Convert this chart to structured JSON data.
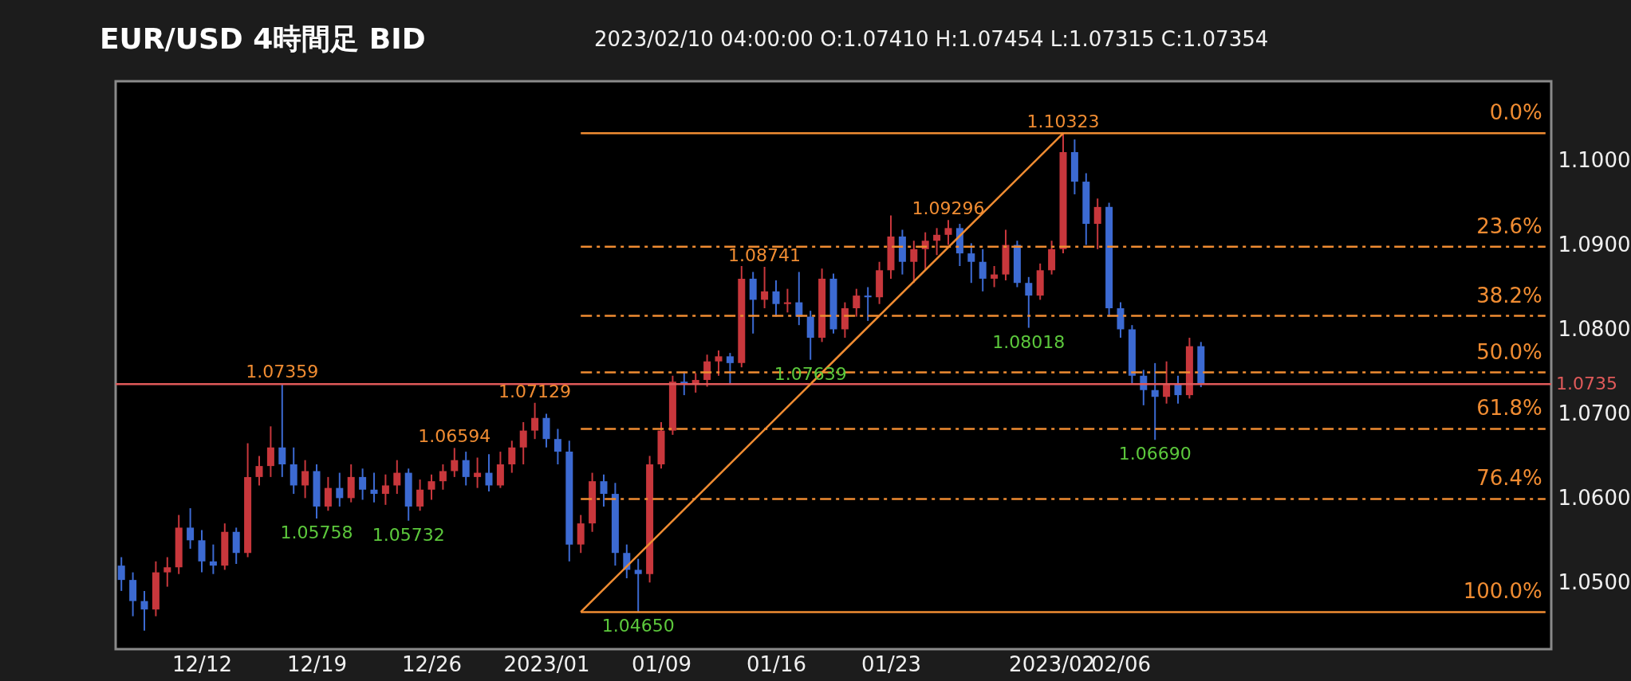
{
  "chart_data": {
    "type": "candlestick",
    "title": "EUR/USD 4時間足 BID",
    "subtitle": "2023/02/10 04:00:00  O:1.07410  H:1.07454  L:1.07315  C:1.07354",
    "categories": [
      null,
      null,
      null,
      null,
      null,
      null,
      null,
      "12/12",
      null,
      null,
      null,
      null,
      null,
      null,
      null,
      null,
      null,
      "12/19",
      null,
      null,
      null,
      null,
      null,
      null,
      null,
      null,
      null,
      "12/26",
      null,
      null,
      null,
      null,
      null,
      null,
      null,
      null,
      null,
      "2023/01",
      null,
      null,
      null,
      null,
      null,
      null,
      null,
      null,
      null,
      "01/09",
      null,
      null,
      null,
      null,
      null,
      null,
      null,
      null,
      null,
      "01/16",
      null,
      null,
      null,
      null,
      null,
      null,
      null,
      null,
      null,
      "01/23",
      null,
      null,
      null,
      null,
      null,
      null,
      null,
      null,
      null,
      null,
      null,
      null,
      null,
      "2023/02",
      null,
      null,
      null,
      null,
      null,
      "02/06",
      null,
      null,
      null,
      null,
      null,
      null,
      null,
      null,
      null,
      null,
      null,
      null,
      null,
      null,
      null,
      null,
      null,
      null,
      null,
      null,
      null,
      null,
      null,
      null,
      null,
      null,
      null,
      null,
      null,
      null,
      null,
      null,
      null,
      null,
      null,
      null,
      null
    ],
    "ohlc": [
      [
        1.052,
        1.053,
        1.049,
        1.0503
      ],
      [
        1.0503,
        1.0512,
        1.046,
        1.0478
      ],
      [
        1.0478,
        1.049,
        1.0443,
        1.0468
      ],
      [
        1.0468,
        1.0525,
        1.046,
        1.0512
      ],
      [
        1.0512,
        1.053,
        1.0495,
        1.0518
      ],
      [
        1.0518,
        1.058,
        1.051,
        1.0565
      ],
      [
        1.0565,
        1.0588,
        1.054,
        1.055
      ],
      [
        1.055,
        1.0562,
        1.0512,
        1.0525
      ],
      [
        1.0525,
        1.0545,
        1.051,
        1.052
      ],
      [
        1.052,
        1.057,
        1.0515,
        1.056
      ],
      [
        1.056,
        1.0565,
        1.0522,
        1.0535
      ],
      [
        1.0535,
        1.0665,
        1.053,
        1.0625
      ],
      [
        1.0625,
        1.065,
        1.0615,
        1.0638
      ],
      [
        1.0638,
        1.0685,
        1.0625,
        1.066
      ],
      [
        1.066,
        1.07359,
        1.0625,
        1.064
      ],
      [
        1.064,
        1.066,
        1.0605,
        1.0615
      ],
      [
        1.0615,
        1.0645,
        1.06,
        1.0632
      ],
      [
        1.0632,
        1.064,
        1.05758,
        1.059
      ],
      [
        1.059,
        1.0625,
        1.0585,
        1.0612
      ],
      [
        1.0612,
        1.063,
        1.059,
        1.06
      ],
      [
        1.06,
        1.064,
        1.0595,
        1.0625
      ],
      [
        1.0625,
        1.0635,
        1.0598,
        1.061
      ],
      [
        1.061,
        1.063,
        1.0595,
        1.0605
      ],
      [
        1.0605,
        1.0628,
        1.0592,
        1.0615
      ],
      [
        1.0615,
        1.0645,
        1.0605,
        1.063
      ],
      [
        1.063,
        1.0635,
        1.05732,
        1.059
      ],
      [
        1.059,
        1.0622,
        1.0585,
        1.061
      ],
      [
        1.061,
        1.0628,
        1.0598,
        1.062
      ],
      [
        1.062,
        1.064,
        1.061,
        1.0632
      ],
      [
        1.0632,
        1.06594,
        1.0625,
        1.0645
      ],
      [
        1.0645,
        1.0655,
        1.0615,
        1.0625
      ],
      [
        1.0625,
        1.0648,
        1.0612,
        1.063
      ],
      [
        1.063,
        1.0652,
        1.0608,
        1.0615
      ],
      [
        1.0615,
        1.0655,
        1.0612,
        1.064
      ],
      [
        1.064,
        1.0668,
        1.063,
        1.066
      ],
      [
        1.066,
        1.069,
        1.064,
        1.068
      ],
      [
        1.068,
        1.07129,
        1.067,
        1.0695
      ],
      [
        1.0695,
        1.07,
        1.066,
        1.067
      ],
      [
        1.067,
        1.0682,
        1.064,
        1.0655
      ],
      [
        1.0655,
        1.0668,
        1.0525,
        1.0545
      ],
      [
        1.0545,
        1.058,
        1.0535,
        1.057
      ],
      [
        1.057,
        1.063,
        1.056,
        1.062
      ],
      [
        1.062,
        1.0628,
        1.059,
        1.0605
      ],
      [
        1.0605,
        1.0618,
        1.052,
        1.0535
      ],
      [
        1.0535,
        1.0545,
        1.0505,
        1.0515
      ],
      [
        1.0515,
        1.0528,
        1.0465,
        1.051
      ],
      [
        1.051,
        1.065,
        1.05,
        1.064
      ],
      [
        1.064,
        1.069,
        1.0635,
        1.068
      ],
      [
        1.068,
        1.0745,
        1.0675,
        1.0738
      ],
      [
        1.0738,
        1.075,
        1.0722,
        1.0735
      ],
      [
        1.0735,
        1.0748,
        1.0725,
        1.074
      ],
      [
        1.074,
        1.077,
        1.0732,
        1.0762
      ],
      [
        1.0762,
        1.0775,
        1.0745,
        1.0768
      ],
      [
        1.0768,
        1.0772,
        1.0735,
        1.076
      ],
      [
        1.076,
        1.0875,
        1.0755,
        1.086
      ],
      [
        1.086,
        1.0868,
        1.0795,
        1.0835
      ],
      [
        1.0835,
        1.08741,
        1.0825,
        1.0845
      ],
      [
        1.0845,
        1.0858,
        1.0815,
        1.083
      ],
      [
        1.083,
        1.0848,
        1.082,
        1.0832
      ],
      [
        1.0832,
        1.0868,
        1.0805,
        1.0815
      ],
      [
        1.0815,
        1.0822,
        1.07639,
        1.079
      ],
      [
        1.079,
        1.0872,
        1.0785,
        1.086
      ],
      [
        1.086,
        1.0866,
        1.0795,
        1.08
      ],
      [
        1.08,
        1.0832,
        1.079,
        1.0825
      ],
      [
        1.0825,
        1.0848,
        1.0815,
        1.084
      ],
      [
        1.084,
        1.085,
        1.081,
        1.0838
      ],
      [
        1.0838,
        1.088,
        1.083,
        1.087
      ],
      [
        1.087,
        1.0935,
        1.086,
        1.091
      ],
      [
        1.091,
        1.0918,
        1.0865,
        1.088
      ],
      [
        1.088,
        1.0905,
        1.0855,
        1.0895
      ],
      [
        1.0895,
        1.0915,
        1.087,
        1.0905
      ],
      [
        1.0905,
        1.092,
        1.0888,
        1.0912
      ],
      [
        1.0912,
        1.09296,
        1.09,
        1.092
      ],
      [
        1.092,
        1.0925,
        1.0875,
        1.089
      ],
      [
        1.089,
        1.0902,
        1.0855,
        1.088
      ],
      [
        1.088,
        1.0895,
        1.0845,
        1.086
      ],
      [
        1.086,
        1.0875,
        1.085,
        1.0865
      ],
      [
        1.0865,
        1.0918,
        1.0858,
        1.09
      ],
      [
        1.09,
        1.0905,
        1.085,
        1.0855
      ],
      [
        1.0855,
        1.0862,
        1.08018,
        1.084
      ],
      [
        1.084,
        1.0878,
        1.0835,
        1.087
      ],
      [
        1.087,
        1.0905,
        1.0865,
        1.0895
      ],
      [
        1.0895,
        1.10323,
        1.089,
        1.101
      ],
      [
        1.101,
        1.1025,
        1.096,
        1.0975
      ],
      [
        1.0975,
        1.0985,
        1.09,
        1.0925
      ],
      [
        1.0925,
        1.0955,
        1.0895,
        1.0945
      ],
      [
        1.0945,
        1.095,
        1.0815,
        1.0825
      ],
      [
        1.0825,
        1.0832,
        1.079,
        1.08
      ],
      [
        1.08,
        1.0805,
        1.0735,
        1.0745
      ],
      [
        1.0745,
        1.0752,
        1.071,
        1.0728
      ],
      [
        1.0728,
        1.076,
        1.0669,
        1.072
      ],
      [
        1.072,
        1.0762,
        1.0712,
        1.0735
      ],
      [
        1.0735,
        1.0745,
        1.0712,
        1.0722
      ],
      [
        1.0722,
        1.079,
        1.0718,
        1.078
      ],
      [
        1.078,
        1.0785,
        1.07315,
        1.07354
      ],
      null,
      null,
      null,
      null,
      null,
      null,
      null,
      null,
      null,
      null,
      null,
      null,
      null,
      null,
      null,
      null,
      null,
      null,
      null,
      null,
      null,
      null,
      null,
      null,
      null,
      null,
      null,
      null,
      null,
      null
    ],
    "colors": [
      "#3c6ad2",
      "#3c6ad2",
      "#3c6ad2",
      "#c8373c",
      "#c8373c",
      "#c8373c",
      "#3c6ad2",
      "#3c6ad2",
      "#3c6ad2",
      "#c8373c",
      "#3c6ad2",
      "#c8373c",
      "#c8373c",
      "#c8373c",
      "#3c6ad2",
      "#3c6ad2",
      "#c8373c",
      "#3c6ad2",
      "#c8373c",
      "#3c6ad2",
      "#c8373c",
      "#3c6ad2",
      "#3c6ad2",
      "#c8373c",
      "#c8373c",
      "#3c6ad2",
      "#c8373c",
      "#c8373c",
      "#c8373c",
      "#c8373c",
      "#3c6ad2",
      "#c8373c",
      "#3c6ad2",
      "#c8373c",
      "#c8373c",
      "#c8373c",
      "#c8373c",
      "#3c6ad2",
      "#3c6ad2",
      "#3c6ad2",
      "#c8373c",
      "#c8373c",
      "#3c6ad2",
      "#3c6ad2",
      "#3c6ad2",
      "#3c6ad2",
      "#c8373c",
      "#c8373c",
      "#c8373c",
      "#3c6ad2",
      "#c8373c",
      "#c8373c",
      "#c8373c",
      "#3c6ad2",
      "#c8373c",
      "#3c6ad2",
      "#c8373c",
      "#3c6ad2",
      "#c8373c",
      "#3c6ad2",
      "#3c6ad2",
      "#c8373c",
      "#3c6ad2",
      "#c8373c",
      "#c8373c",
      "#3c6ad2",
      "#c8373c",
      "#c8373c",
      "#3c6ad2",
      "#c8373c",
      "#c8373c",
      "#c8373c",
      "#c8373c",
      "#3c6ad2",
      "#3c6ad2",
      "#3c6ad2",
      "#c8373c",
      "#c8373c",
      "#3c6ad2",
      "#3c6ad2",
      "#c8373c",
      "#c8373c",
      "#c8373c",
      "#3c6ad2",
      "#3c6ad2",
      "#c8373c",
      "#3c6ad2",
      "#3c6ad2",
      "#3c6ad2",
      "#3c6ad2",
      "#3c6ad2",
      "#c8373c",
      "#3c6ad2",
      "#c8373c",
      "#3c6ad2",
      null,
      null,
      null,
      null,
      null,
      null,
      null,
      null,
      null,
      null,
      null,
      null,
      null,
      null,
      null,
      null,
      null,
      null,
      null,
      null,
      null,
      null,
      null,
      null,
      null,
      null,
      null,
      null,
      null,
      null
    ],
    "series": [
      {
        "type": "line",
        "color": "#f08c32",
        "line_style": "solid",
        "values": [
          null,
          null,
          null,
          null,
          null,
          null,
          null,
          null,
          null,
          null,
          null,
          null,
          null,
          null,
          null,
          null,
          null,
          null,
          null,
          null,
          null,
          null,
          null,
          null,
          null,
          null,
          null,
          null,
          null,
          null,
          null,
          null,
          null,
          null,
          null,
          null,
          null,
          null,
          null,
          null,
          1.0465,
          null,
          null,
          null,
          null,
          null,
          null,
          null,
          null,
          null,
          null,
          null,
          null,
          null,
          null,
          null,
          null,
          null,
          null,
          null,
          null,
          null,
          null,
          null,
          null,
          null,
          null,
          null,
          null,
          null,
          null,
          null,
          null,
          null,
          null,
          null,
          null,
          null,
          null,
          null,
          null,
          null,
          1.10323,
          null,
          null,
          null,
          null,
          null,
          null,
          null,
          null,
          null,
          null,
          null,
          null,
          null,
          null,
          null,
          null,
          null,
          null,
          null,
          null,
          null,
          null,
          null,
          null,
          null,
          null,
          null,
          null,
          null,
          null,
          null,
          null,
          null,
          null,
          null,
          null,
          null,
          null,
          null,
          null,
          null,
          null
        ]
      },
      {
        "type": "line",
        "name": "0.0%",
        "color": "#f08c32",
        "line_style": "solid",
        "values": [
          null,
          null,
          null,
          null,
          null,
          null,
          null,
          null,
          null,
          null,
          null,
          null,
          null,
          null,
          null,
          null,
          null,
          null,
          null,
          null,
          null,
          null,
          null,
          null,
          null,
          null,
          null,
          null,
          null,
          null,
          null,
          null,
          null,
          null,
          null,
          null,
          null,
          null,
          null,
          null,
          1.10323,
          1.10323,
          1.10323,
          1.10323,
          1.10323,
          1.10323,
          1.10323,
          1.10323,
          1.10323,
          1.10323,
          1.10323,
          1.10323,
          1.10323,
          1.10323,
          1.10323,
          1.10323,
          1.10323,
          1.10323,
          1.10323,
          1.10323,
          1.10323,
          1.10323,
          1.10323,
          1.10323,
          1.10323,
          1.10323,
          1.10323,
          1.10323,
          1.10323,
          1.10323,
          1.10323,
          1.10323,
          1.10323,
          1.10323,
          1.10323,
          1.10323,
          1.10323,
          1.10323,
          1.10323,
          1.10323,
          1.10323,
          1.10323,
          1.10323,
          1.10323,
          1.10323,
          1.10323,
          1.10323,
          1.10323,
          1.10323,
          1.10323,
          1.10323,
          1.10323,
          1.10323,
          1.10323,
          1.10323,
          1.10323,
          1.10323,
          1.10323,
          1.10323,
          1.10323,
          1.10323,
          1.10323,
          1.10323,
          1.10323,
          1.10323,
          1.10323,
          1.10323,
          1.10323,
          1.10323,
          1.10323,
          1.10323,
          1.10323,
          1.10323,
          1.10323,
          1.10323,
          1.10323,
          1.10323,
          1.10323,
          1.10323,
          1.10323,
          1.10323,
          1.10323,
          1.10323,
          1.10323,
          1.10323
        ]
      },
      {
        "type": "line",
        "name": "23.6%",
        "color": "#f08c32",
        "line_style": "dashed",
        "values": [
          null,
          null,
          null,
          null,
          null,
          null,
          null,
          null,
          null,
          null,
          null,
          null,
          null,
          null,
          null,
          null,
          null,
          null,
          null,
          null,
          null,
          null,
          null,
          null,
          null,
          null,
          null,
          null,
          null,
          null,
          null,
          null,
          null,
          null,
          null,
          null,
          null,
          null,
          null,
          null,
          1.0898,
          1.0898,
          1.0898,
          1.0898,
          1.0898,
          1.0898,
          1.0898,
          1.0898,
          1.0898,
          1.0898,
          1.0898,
          1.0898,
          1.0898,
          1.0898,
          1.0898,
          1.0898,
          1.0898,
          1.0898,
          1.0898,
          1.0898,
          1.0898,
          1.0898,
          1.0898,
          1.0898,
          1.0898,
          1.0898,
          1.0898,
          1.0898,
          1.0898,
          1.0898,
          1.0898,
          1.0898,
          1.0898,
          1.0898,
          1.0898,
          1.0898,
          1.0898,
          1.0898,
          1.0898,
          1.0898,
          1.0898,
          1.0898,
          1.0898,
          1.0898,
          1.0898,
          1.0898,
          1.0898,
          1.0898,
          1.0898,
          1.0898,
          1.0898,
          1.0898,
          1.0898,
          1.0898,
          1.0898,
          1.0898,
          1.0898,
          1.0898,
          1.0898,
          1.0898,
          1.0898,
          1.0898,
          1.0898,
          1.0898,
          1.0898,
          1.0898,
          1.0898,
          1.0898,
          1.0898,
          1.0898,
          1.0898,
          1.0898,
          1.0898,
          1.0898,
          1.0898,
          1.0898,
          1.0898,
          1.0898,
          1.0898,
          1.0898,
          1.0898,
          1.0898,
          1.0898,
          1.0898,
          1.0898
        ]
      },
      {
        "type": "line",
        "name": "38.2%",
        "color": "#f08c32",
        "line_style": "dashed",
        "values": [
          null,
          null,
          null,
          null,
          null,
          null,
          null,
          null,
          null,
          null,
          null,
          null,
          null,
          null,
          null,
          null,
          null,
          null,
          null,
          null,
          null,
          null,
          null,
          null,
          null,
          null,
          null,
          null,
          null,
          null,
          null,
          null,
          null,
          null,
          null,
          null,
          null,
          null,
          null,
          null,
          1.0816,
          1.0816,
          1.0816,
          1.0816,
          1.0816,
          1.0816,
          1.0816,
          1.0816,
          1.0816,
          1.0816,
          1.0816,
          1.0816,
          1.0816,
          1.0816,
          1.0816,
          1.0816,
          1.0816,
          1.0816,
          1.0816,
          1.0816,
          1.0816,
          1.0816,
          1.0816,
          1.0816,
          1.0816,
          1.0816,
          1.0816,
          1.0816,
          1.0816,
          1.0816,
          1.0816,
          1.0816,
          1.0816,
          1.0816,
          1.0816,
          1.0816,
          1.0816,
          1.0816,
          1.0816,
          1.0816,
          1.0816,
          1.0816,
          1.0816,
          1.0816,
          1.0816,
          1.0816,
          1.0816,
          1.0816,
          1.0816,
          1.0816,
          1.0816,
          1.0816,
          1.0816,
          1.0816,
          1.0816,
          1.0816,
          1.0816,
          1.0816,
          1.0816,
          1.0816,
          1.0816,
          1.0816,
          1.0816,
          1.0816,
          1.0816,
          1.0816,
          1.0816,
          1.0816,
          1.0816,
          1.0816,
          1.0816,
          1.0816,
          1.0816,
          1.0816,
          1.0816,
          1.0816,
          1.0816,
          1.0816,
          1.0816,
          1.0816,
          1.0816,
          1.0816,
          1.0816,
          1.0816,
          1.0816
        ]
      },
      {
        "type": "line",
        "name": "50.0%",
        "color": "#f08c32",
        "line_style": "dashed",
        "values": [
          null,
          null,
          null,
          null,
          null,
          null,
          null,
          null,
          null,
          null,
          null,
          null,
          null,
          null,
          null,
          null,
          null,
          null,
          null,
          null,
          null,
          null,
          null,
          null,
          null,
          null,
          null,
          null,
          null,
          null,
          null,
          null,
          null,
          null,
          null,
          null,
          null,
          null,
          null,
          null,
          1.0749,
          1.0749,
          1.0749,
          1.0749,
          1.0749,
          1.0749,
          1.0749,
          1.0749,
          1.0749,
          1.0749,
          1.0749,
          1.0749,
          1.0749,
          1.0749,
          1.0749,
          1.0749,
          1.0749,
          1.0749,
          1.0749,
          1.0749,
          1.0749,
          1.0749,
          1.0749,
          1.0749,
          1.0749,
          1.0749,
          1.0749,
          1.0749,
          1.0749,
          1.0749,
          1.0749,
          1.0749,
          1.0749,
          1.0749,
          1.0749,
          1.0749,
          1.0749,
          1.0749,
          1.0749,
          1.0749,
          1.0749,
          1.0749,
          1.0749,
          1.0749,
          1.0749,
          1.0749,
          1.0749,
          1.0749,
          1.0749,
          1.0749,
          1.0749,
          1.0749,
          1.0749,
          1.0749,
          1.0749,
          1.0749,
          1.0749,
          1.0749,
          1.0749,
          1.0749,
          1.0749,
          1.0749,
          1.0749,
          1.0749,
          1.0749,
          1.0749,
          1.0749,
          1.0749,
          1.0749,
          1.0749,
          1.0749,
          1.0749,
          1.0749,
          1.0749,
          1.0749,
          1.0749,
          1.0749,
          1.0749,
          1.0749,
          1.0749,
          1.0749,
          1.0749,
          1.0749,
          1.0749,
          1.0749
        ]
      },
      {
        "type": "line",
        "name": "61.8%",
        "color": "#f08c32",
        "line_style": "dashed",
        "values": [
          null,
          null,
          null,
          null,
          null,
          null,
          null,
          null,
          null,
          null,
          null,
          null,
          null,
          null,
          null,
          null,
          null,
          null,
          null,
          null,
          null,
          null,
          null,
          null,
          null,
          null,
          null,
          null,
          null,
          null,
          null,
          null,
          null,
          null,
          null,
          null,
          null,
          null,
          null,
          null,
          1.0682,
          1.0682,
          1.0682,
          1.0682,
          1.0682,
          1.0682,
          1.0682,
          1.0682,
          1.0682,
          1.0682,
          1.0682,
          1.0682,
          1.0682,
          1.0682,
          1.0682,
          1.0682,
          1.0682,
          1.0682,
          1.0682,
          1.0682,
          1.0682,
          1.0682,
          1.0682,
          1.0682,
          1.0682,
          1.0682,
          1.0682,
          1.0682,
          1.0682,
          1.0682,
          1.0682,
          1.0682,
          1.0682,
          1.0682,
          1.0682,
          1.0682,
          1.0682,
          1.0682,
          1.0682,
          1.0682,
          1.0682,
          1.0682,
          1.0682,
          1.0682,
          1.0682,
          1.0682,
          1.0682,
          1.0682,
          1.0682,
          1.0682,
          1.0682,
          1.0682,
          1.0682,
          1.0682,
          1.0682,
          1.0682,
          1.0682,
          1.0682,
          1.0682,
          1.0682,
          1.0682,
          1.0682,
          1.0682,
          1.0682,
          1.0682,
          1.0682,
          1.0682,
          1.0682,
          1.0682,
          1.0682,
          1.0682,
          1.0682,
          1.0682,
          1.0682,
          1.0682,
          1.0682,
          1.0682,
          1.0682,
          1.0682,
          1.0682,
          1.0682,
          1.0682,
          1.0682,
          1.0682,
          1.0682
        ]
      },
      {
        "type": "line",
        "name": "76.4%",
        "color": "#f08c32",
        "line_style": "dashed",
        "values": [
          null,
          null,
          null,
          null,
          null,
          null,
          null,
          null,
          null,
          null,
          null,
          null,
          null,
          null,
          null,
          null,
          null,
          null,
          null,
          null,
          null,
          null,
          null,
          null,
          null,
          null,
          null,
          null,
          null,
          null,
          null,
          null,
          null,
          null,
          null,
          null,
          null,
          null,
          null,
          null,
          1.0599,
          1.0599,
          1.0599,
          1.0599,
          1.0599,
          1.0599,
          1.0599,
          1.0599,
          1.0599,
          1.0599,
          1.0599,
          1.0599,
          1.0599,
          1.0599,
          1.0599,
          1.0599,
          1.0599,
          1.0599,
          1.0599,
          1.0599,
          1.0599,
          1.0599,
          1.0599,
          1.0599,
          1.0599,
          1.0599,
          1.0599,
          1.0599,
          1.0599,
          1.0599,
          1.0599,
          1.0599,
          1.0599,
          1.0599,
          1.0599,
          1.0599,
          1.0599,
          1.0599,
          1.0599,
          1.0599,
          1.0599,
          1.0599,
          1.0599,
          1.0599,
          1.0599,
          1.0599,
          1.0599,
          1.0599,
          1.0599,
          1.0599,
          1.0599,
          1.0599,
          1.0599,
          1.0599,
          1.0599,
          1.0599,
          1.0599,
          1.0599,
          1.0599,
          1.0599,
          1.0599,
          1.0599,
          1.0599,
          1.0599,
          1.0599,
          1.0599,
          1.0599,
          1.0599,
          1.0599,
          1.0599,
          1.0599,
          1.0599,
          1.0599,
          1.0599,
          1.0599,
          1.0599,
          1.0599,
          1.0599,
          1.0599,
          1.0599,
          1.0599,
          1.0599,
          1.0599,
          1.0599,
          1.0599
        ]
      },
      {
        "type": "line",
        "name": "100.0%",
        "color": "#f08c32",
        "line_style": "solid",
        "values": [
          null,
          null,
          null,
          null,
          null,
          null,
          null,
          null,
          null,
          null,
          null,
          null,
          null,
          null,
          null,
          null,
          null,
          null,
          null,
          null,
          null,
          null,
          null,
          null,
          null,
          null,
          null,
          null,
          null,
          null,
          null,
          null,
          null,
          null,
          null,
          null,
          null,
          null,
          null,
          null,
          1.0465,
          1.0465,
          1.0465,
          1.0465,
          1.0465,
          1.0465,
          1.0465,
          1.0465,
          1.0465,
          1.0465,
          1.0465,
          1.0465,
          1.0465,
          1.0465,
          1.0465,
          1.0465,
          1.0465,
          1.0465,
          1.0465,
          1.0465,
          1.0465,
          1.0465,
          1.0465,
          1.0465,
          1.0465,
          1.0465,
          1.0465,
          1.0465,
          1.0465,
          1.0465,
          1.0465,
          1.0465,
          1.0465,
          1.0465,
          1.0465,
          1.0465,
          1.0465,
          1.0465,
          1.0465,
          1.0465,
          1.0465,
          1.0465,
          1.0465,
          1.0465,
          1.0465,
          1.0465,
          1.0465,
          1.0465,
          1.0465,
          1.0465,
          1.0465,
          1.0465,
          1.0465,
          1.0465,
          1.0465,
          1.0465,
          1.0465,
          1.0465,
          1.0465,
          1.0465,
          1.0465,
          1.0465,
          1.0465,
          1.0465,
          1.0465,
          1.0465,
          1.0465,
          1.0465,
          1.0465,
          1.0465,
          1.0465,
          1.0465,
          1.0465,
          1.0465,
          1.0465,
          1.0465,
          1.0465,
          1.0465,
          1.0465,
          1.0465,
          1.0465,
          1.0465,
          1.0465,
          1.0465,
          1.0465
        ]
      }
    ],
    "ref_lines": [
      {
        "axis": "y",
        "value": 1.0735,
        "label": "1.0735",
        "color": "#e05a5a"
      }
    ],
    "annotations": [
      {
        "text": "1.07359",
        "y": 1.07359
      },
      {
        "text": "1.05758",
        "y": 1.05758
      },
      {
        "text": "1.05732",
        "y": 1.05732
      },
      {
        "text": "1.06594",
        "y": 1.06594
      },
      {
        "text": "1.07129",
        "y": 1.07129
      },
      {
        "text": "1.04650",
        "y": 1.0465
      },
      {
        "text": "1.08741",
        "y": 1.08741
      },
      {
        "text": "1.07639",
        "y": 1.07639
      },
      {
        "text": "1.09296",
        "y": 1.09296
      },
      {
        "text": "1.08018",
        "y": 1.08018
      },
      {
        "text": "1.10323",
        "y": 1.10323
      },
      {
        "text": "1.06690",
        "y": 1.0669
      }
    ],
    "ylim": [
      1.0421,
      1.1094
    ],
    "yticks": [
      {
        "value": 1.05,
        "label": "1.0500"
      },
      {
        "value": 1.06,
        "label": "1.0600"
      },
      {
        "value": 1.07,
        "label": "1.0700"
      },
      {
        "value": 1.08,
        "label": "1.0800"
      },
      {
        "value": 1.09,
        "label": "1.0900"
      },
      {
        "value": 1.1,
        "label": "1.1000"
      }
    ],
    "grid": false
  }
}
